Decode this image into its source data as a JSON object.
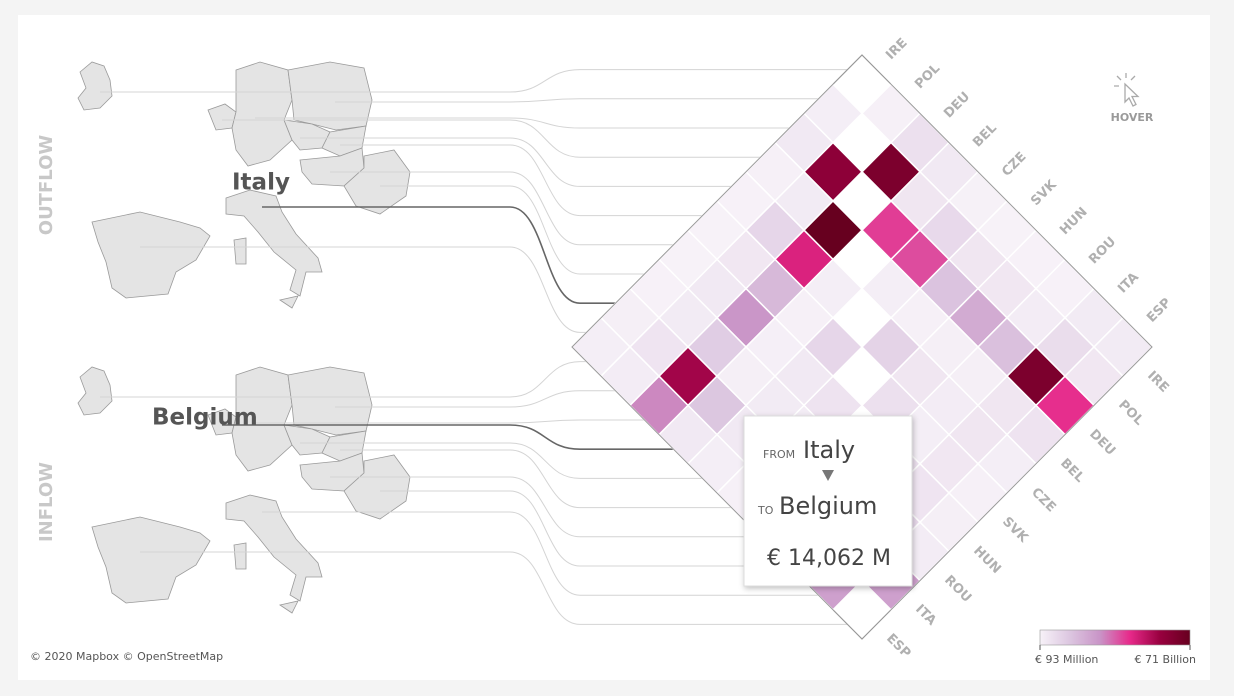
{
  "chart_data": {
    "type": "heatmap",
    "row_title": "OUTFLOW",
    "column_title": "INFLOW",
    "rows": [
      "IRE",
      "POL",
      "DEU",
      "BEL",
      "CZE",
      "SVK",
      "HUN",
      "ROU",
      "ITA",
      "ESP"
    ],
    "columns": [
      "IRE",
      "POL",
      "DEU",
      "BEL",
      "CZE",
      "SVK",
      "HUN",
      "ROU",
      "ITA",
      "ESP"
    ],
    "values": [
      [
        null,
        800,
        6000,
        3000,
        500,
        200,
        300,
        300,
        2500,
        2500
      ],
      [
        1500,
        null,
        65000,
        4000,
        8000,
        4000,
        3500,
        2000,
        7000,
        3500
      ],
      [
        3000,
        60000,
        null,
        40000,
        38000,
        15000,
        22000,
        16000,
        65000,
        42000
      ],
      [
        800,
        2500,
        71000,
        null,
        1500,
        800,
        1200,
        1000,
        4000,
        5000
      ],
      [
        300,
        9000,
        45000,
        1500,
        null,
        10000,
        4000,
        2000,
        4000,
        1500
      ],
      [
        200,
        3500,
        18000,
        700,
        9000,
        null,
        6000,
        1500,
        3500,
        800
      ],
      [
        250,
        3000,
        28000,
        900,
        3000,
        5000,
        null,
        6000,
        4500,
        1200
      ],
      [
        300,
        2500,
        12000,
        1200,
        2500,
        2000,
        6000,
        null,
        8000,
        2000
      ],
      [
        1200,
        4500,
        55000,
        14062,
        3000,
        2500,
        3500,
        6000,
        null,
        25000
      ],
      [
        1500,
        2000,
        30000,
        3000,
        1500,
        800,
        1200,
        1500,
        25000,
        null
      ]
    ],
    "colorscale": {
      "min": {
        "value": 93,
        "label": "€ 93 Million"
      },
      "max": {
        "value": 71000,
        "label": "€ 71 Billion"
      },
      "colors": [
        "#f7f2f8",
        "#dcc6e0",
        "#c994c7",
        "#e7298a",
        "#98003f",
        "#67001f"
      ]
    },
    "selection": {
      "from": "Italy",
      "to": "Belgium"
    },
    "tooltip": {
      "from_caption": "FROM",
      "to_caption": "TO",
      "value_label": "€ 14,062 M"
    }
  },
  "hover": "HOVER",
  "attribution": "© 2020 Mapbox © OpenStreetMap"
}
